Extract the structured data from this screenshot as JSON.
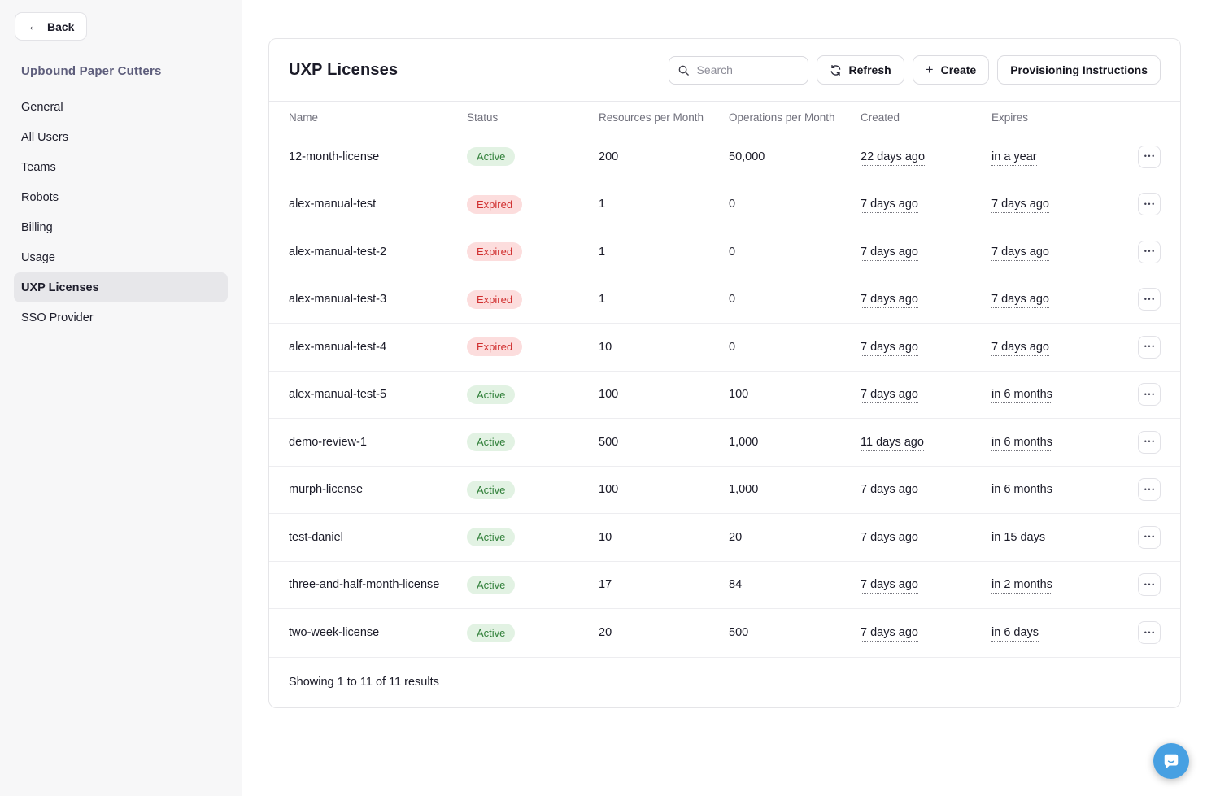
{
  "sidebar": {
    "back_label": "Back",
    "back_icon": "arrow-left",
    "org_name": "Upbound Paper Cutters",
    "items": [
      {
        "label": "General",
        "active": false
      },
      {
        "label": "All Users",
        "active": false
      },
      {
        "label": "Teams",
        "active": false
      },
      {
        "label": "Robots",
        "active": false
      },
      {
        "label": "Billing",
        "active": false
      },
      {
        "label": "Usage",
        "active": false
      },
      {
        "label": "UXP Licenses",
        "active": true
      },
      {
        "label": "SSO Provider",
        "active": false
      }
    ]
  },
  "main": {
    "title": "UXP Licenses",
    "toolbar": {
      "search_placeholder": "Search",
      "search_icon": "magnifier",
      "refresh_label": "Refresh",
      "refresh_icon": "sync-arrows",
      "create_label": "Create",
      "create_icon": "plus",
      "provisioning_label": "Provisioning Instructions"
    },
    "table": {
      "columns": [
        "Name",
        "Status",
        "Resources per Month",
        "Operations per Month",
        "Created",
        "Expires"
      ],
      "row_menu_icon": "ellipsis",
      "rows": [
        {
          "name": "12-month-license",
          "status": "Active",
          "resources": "200",
          "operations": "50,000",
          "created": "22 days ago",
          "expires": "in a year"
        },
        {
          "name": "alex-manual-test",
          "status": "Expired",
          "resources": "1",
          "operations": "0",
          "created": "7 days ago",
          "expires": "7 days ago"
        },
        {
          "name": "alex-manual-test-2",
          "status": "Expired",
          "resources": "1",
          "operations": "0",
          "created": "7 days ago",
          "expires": "7 days ago"
        },
        {
          "name": "alex-manual-test-3",
          "status": "Expired",
          "resources": "1",
          "operations": "0",
          "created": "7 days ago",
          "expires": "7 days ago"
        },
        {
          "name": "alex-manual-test-4",
          "status": "Expired",
          "resources": "10",
          "operations": "0",
          "created": "7 days ago",
          "expires": "7 days ago"
        },
        {
          "name": "alex-manual-test-5",
          "status": "Active",
          "resources": "100",
          "operations": "100",
          "created": "7 days ago",
          "expires": "in 6 months"
        },
        {
          "name": "demo-review-1",
          "status": "Active",
          "resources": "500",
          "operations": "1,000",
          "created": "11 days ago",
          "expires": "in 6 months"
        },
        {
          "name": "murph-license",
          "status": "Active",
          "resources": "100",
          "operations": "1,000",
          "created": "7 days ago",
          "expires": "in 6 months"
        },
        {
          "name": "test-daniel",
          "status": "Active",
          "resources": "10",
          "operations": "20",
          "created": "7 days ago",
          "expires": "in 15 days"
        },
        {
          "name": "three-and-half-month-license",
          "status": "Active",
          "resources": "17",
          "operations": "84",
          "created": "7 days ago",
          "expires": "in 2 months"
        },
        {
          "name": "two-week-license",
          "status": "Active",
          "resources": "20",
          "operations": "500",
          "created": "7 days ago",
          "expires": "in 6 days"
        }
      ],
      "footer": "Showing 1 to 11 of 11 results"
    }
  },
  "chat_widget": {
    "icon": "chat-bubble-smile"
  },
  "colors": {
    "status_active_bg": "#e2f2e3",
    "status_active_text": "#31803a",
    "status_expired_bg": "#fcdddd",
    "status_expired_text": "#d02f2f",
    "sidebar_bg": "#f7f7f8",
    "sidebar_active_bg": "#e7e7ea",
    "org_name_text": "#5e5e7c",
    "chat_fab_bg": "#47a0e2",
    "border": "#e5e5e8"
  }
}
